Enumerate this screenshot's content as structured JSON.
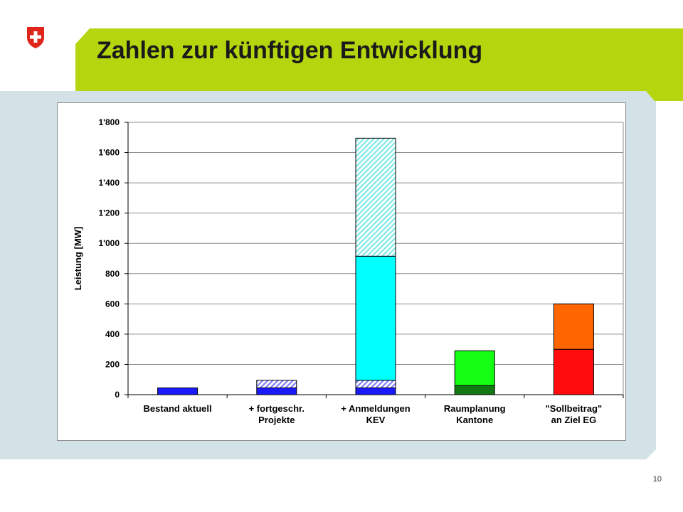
{
  "slide": {
    "title": "Zahlen zur künftigen Entwicklung",
    "page_number": "10"
  },
  "colors": {
    "header_band": "#b5d60f",
    "panel": "#d3e2e6",
    "logo_red": "#e0261a"
  },
  "logo": {
    "icon": "swiss-cross-shield-icon"
  },
  "chart_data": {
    "type": "bar",
    "stacked": true,
    "categories": [
      [
        "Bestand aktuell"
      ],
      [
        "+ fortgeschr.",
        "Projekte"
      ],
      [
        "+ Anmeldungen",
        "KEV"
      ],
      [
        "Raumplanung",
        "Kantone"
      ],
      [
        "\"Sollbeitrag\"",
        "an Ziel EG"
      ]
    ],
    "ylabel": "Leistung [MW]",
    "xlabel": "",
    "title": "",
    "ylim": [
      0,
      1800
    ],
    "yticks": [
      0,
      200,
      400,
      600,
      800,
      1000,
      1200,
      1400,
      1600,
      1800
    ],
    "ytick_labels": [
      "0",
      "200",
      "400",
      "600",
      "800",
      "1'000",
      "1'200",
      "1'400",
      "1'600",
      "1'800"
    ],
    "grid": true,
    "legend": "none",
    "segments": [
      [
        {
          "value": 45,
          "color": "#1a1aff",
          "pattern": "solid"
        }
      ],
      [
        {
          "value": 45,
          "color": "#1a1aff",
          "pattern": "solid"
        },
        {
          "value": 50,
          "color": "#7f7fff",
          "pattern": "hatch"
        }
      ],
      [
        {
          "value": 45,
          "color": "#1a1aff",
          "pattern": "solid"
        },
        {
          "value": 50,
          "color": "#7f7fff",
          "pattern": "hatch"
        },
        {
          "value": 820,
          "color": "#00ffff",
          "pattern": "solid"
        },
        {
          "value": 780,
          "color": "#7fe8e8",
          "pattern": "hatch"
        }
      ],
      [
        {
          "value": 60,
          "color": "#137a13",
          "pattern": "solid"
        },
        {
          "value": 230,
          "color": "#14ff14",
          "pattern": "solid"
        }
      ],
      [
        {
          "value": 300,
          "color": "#ff0d0d",
          "pattern": "solid"
        },
        {
          "value": 300,
          "color": "#ff6600",
          "pattern": "solid"
        }
      ]
    ]
  }
}
